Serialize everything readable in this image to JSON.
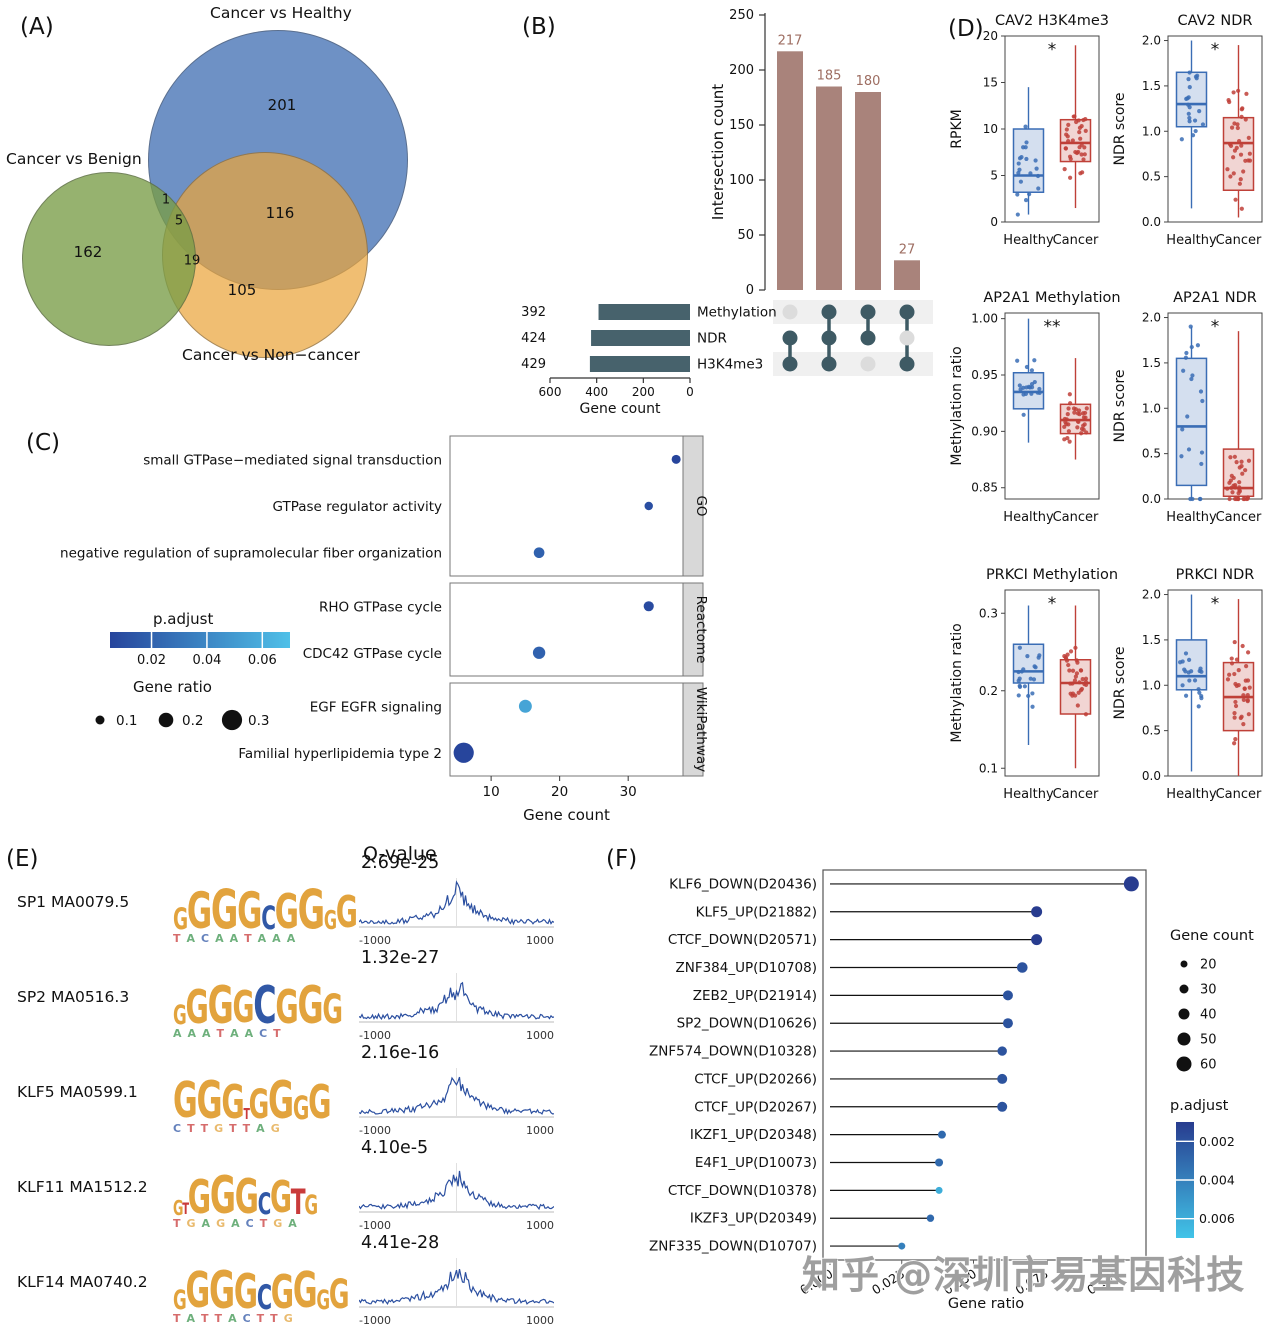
{
  "figure": {
    "panel_labels": {
      "A": "(A)",
      "B": "(B)",
      "C": "(C)",
      "D": "(D)",
      "E": "(E)",
      "F": "(F)"
    },
    "watermark": "知乎 @深圳市易基因科技"
  },
  "chart_data": [
    {
      "id": "venn",
      "type": "venn",
      "panel": "A",
      "sets": [
        {
          "label": "Cancer vs Healthy",
          "color": "#3e6cb2",
          "unique": 201
        },
        {
          "label": "Cancer vs Benign",
          "color": "#799c46",
          "unique": 162
        },
        {
          "label": "Cancer vs Non−cancer",
          "color": "#eaa53b",
          "unique": 105
        }
      ],
      "overlaps": {
        "healthy_benign": 1,
        "all_three": 5,
        "healthy_noncancer": 116,
        "benign_noncancer": 19
      }
    },
    {
      "id": "upset",
      "type": "upset",
      "panel": "B",
      "ylabel": "Intersection count",
      "ymax": 250,
      "yticks": [
        0,
        50,
        100,
        150,
        200,
        250
      ],
      "bar_color": "#a9837b",
      "bar_label_color": "#9e6e62",
      "dot_color": "#3e5a64",
      "dot_inactive": "#dcdcdc",
      "set_bar_color": "#47626c",
      "intersections": [
        {
          "count": 217,
          "sets": [
            "NDR",
            "H3K4me3"
          ]
        },
        {
          "count": 185,
          "sets": [
            "Methylation",
            "NDR",
            "H3K4me3"
          ]
        },
        {
          "count": 180,
          "sets": [
            "Methylation",
            "NDR"
          ]
        },
        {
          "count": 27,
          "sets": [
            "Methylation",
            "H3K4me3"
          ]
        }
      ],
      "set_sizes": [
        {
          "name": "Methylation",
          "count": 392
        },
        {
          "name": "NDR",
          "count": 424
        },
        {
          "name": "H3K4me3",
          "count": 429
        }
      ],
      "set_axis": {
        "label": "Gene count",
        "ticks": [
          600,
          400,
          200,
          0
        ]
      }
    },
    {
      "id": "enrichment_dotplot",
      "type": "dotplot",
      "panel": "C",
      "xlabel": "Gene count",
      "xticks": [
        10,
        20,
        30
      ],
      "xlim": [
        4,
        38
      ],
      "color_low": "#27459c",
      "color_high": "#4fc0e8",
      "groups": [
        {
          "name": "GO",
          "terms": [
            {
              "label": "small GTPase−mediated signal transduction",
              "gene_count": 37,
              "gene_ratio": 0.1,
              "p_adjust": 0.005
            },
            {
              "label": "GTPase regulator activity",
              "gene_count": 33,
              "gene_ratio": 0.09,
              "p_adjust": 0.01
            },
            {
              "label": "negative regulation of supramolecular fiber organization",
              "gene_count": 17,
              "gene_ratio": 0.13,
              "p_adjust": 0.02
            }
          ]
        },
        {
          "name": "Reactome",
          "terms": [
            {
              "label": "RHO GTPase cycle",
              "gene_count": 33,
              "gene_ratio": 0.12,
              "p_adjust": 0.008
            },
            {
              "label": "CDC42 GTPase cycle",
              "gene_count": 17,
              "gene_ratio": 0.16,
              "p_adjust": 0.02
            }
          ]
        },
        {
          "name": "WikiPathway",
          "terms": [
            {
              "label": "EGF EGFR signaling",
              "gene_count": 15,
              "gene_ratio": 0.17,
              "p_adjust": 0.055
            },
            {
              "label": "Familial hyperlipidemia type 2",
              "gene_count": 6,
              "gene_ratio": 0.3,
              "p_adjust": 0.004
            }
          ]
        }
      ],
      "legend": {
        "p_adjust_label": "p.adjust",
        "p_adjust_ticks": [
          0.02,
          0.04,
          0.06
        ],
        "gene_ratio_label": "Gene ratio",
        "gene_ratio_sizes": [
          0.1,
          0.2,
          0.3
        ]
      }
    },
    {
      "id": "boxplots",
      "type": "boxplot-grid",
      "panel": "D",
      "group_labels": [
        "Healthy",
        "Cancer"
      ],
      "group_colors": [
        "#3a6db5",
        "#bf4038"
      ],
      "group_fills": [
        "rgba(58,109,181,0.22)",
        "rgba(191,64,56,0.22)"
      ],
      "plots": [
        {
          "title": "CAV2 H3K4me3",
          "ylabel": "RPKM",
          "ylim": [
            0,
            20
          ],
          "tick_vals": [
            0,
            5,
            10,
            15,
            20
          ],
          "tick_labels": [
            "0",
            "5",
            "10",
            "15",
            "20"
          ],
          "sig": "*",
          "groups": [
            {
              "name": "Healthy",
              "whislo": 0.8,
              "q1": 3.2,
              "med": 5.0,
              "q3": 10.0,
              "whishi": 14.5,
              "n_points": 20
            },
            {
              "name": "Cancer",
              "whislo": 1.5,
              "q1": 6.5,
              "med": 8.5,
              "q3": 11.0,
              "whishi": 19.0,
              "n_points": 34
            }
          ]
        },
        {
          "title": "CAV2 NDR",
          "ylabel": "NDR score",
          "ylim": [
            0,
            2.05
          ],
          "tick_vals": [
            0,
            0.5,
            1.0,
            1.5,
            2.0
          ],
          "tick_labels": [
            "0.0",
            "0.5",
            "1.0",
            "1.5",
            "2.0"
          ],
          "sig": "*",
          "groups": [
            {
              "name": "Healthy",
              "whislo": 0.15,
              "q1": 1.05,
              "med": 1.3,
              "q3": 1.65,
              "whishi": 2.0,
              "n_points": 20
            },
            {
              "name": "Cancer",
              "whislo": 0.05,
              "q1": 0.35,
              "med": 0.87,
              "q3": 1.15,
              "whishi": 1.95,
              "n_points": 34
            }
          ]
        },
        {
          "title": "AP2A1 Methylation",
          "ylabel": "Methylation ratio",
          "ylim": [
            0.84,
            1.005
          ],
          "tick_vals": [
            0.85,
            0.9,
            0.95,
            1.0
          ],
          "tick_labels": [
            "0.85",
            "0.90",
            "0.95",
            "1.00"
          ],
          "sig": "**",
          "groups": [
            {
              "name": "Healthy",
              "whislo": 0.89,
              "q1": 0.92,
              "med": 0.935,
              "q3": 0.952,
              "whishi": 1.0,
              "n_points": 20
            },
            {
              "name": "Cancer",
              "whislo": 0.875,
              "q1": 0.898,
              "med": 0.91,
              "q3": 0.924,
              "whishi": 0.965,
              "n_points": 34
            }
          ]
        },
        {
          "title": "AP2A1 NDR",
          "ylabel": "NDR score",
          "ylim": [
            0,
            2.05
          ],
          "tick_vals": [
            0,
            0.5,
            1.0,
            1.5,
            2.0
          ],
          "tick_labels": [
            "0.0",
            "0.5",
            "1.0",
            "1.5",
            "2.0"
          ],
          "sig": "*",
          "groups": [
            {
              "name": "Healthy",
              "whislo": 0.0,
              "q1": 0.15,
              "med": 0.8,
              "q3": 1.55,
              "whishi": 1.9,
              "n_points": 20
            },
            {
              "name": "Cancer",
              "whislo": 0.0,
              "q1": 0.03,
              "med": 0.12,
              "q3": 0.55,
              "whishi": 1.85,
              "n_points": 34
            }
          ]
        },
        {
          "title": "PRKCI Methylation",
          "ylabel": "Methylation ratio",
          "ylim": [
            0.09,
            0.33
          ],
          "tick_vals": [
            0.1,
            0.2,
            0.3
          ],
          "tick_labels": [
            "0.1",
            "0.2",
            "0.3"
          ],
          "sig": "*",
          "groups": [
            {
              "name": "Healthy",
              "whislo": 0.13,
              "q1": 0.21,
              "med": 0.225,
              "q3": 0.26,
              "whishi": 0.31,
              "n_points": 20
            },
            {
              "name": "Cancer",
              "whislo": 0.1,
              "q1": 0.17,
              "med": 0.21,
              "q3": 0.24,
              "whishi": 0.31,
              "n_points": 34
            }
          ]
        },
        {
          "title": "PRKCI NDR",
          "ylabel": "NDR score",
          "ylim": [
            0,
            2.05
          ],
          "tick_vals": [
            0,
            0.5,
            1.0,
            1.5,
            2.0
          ],
          "tick_labels": [
            "0.0",
            "0.5",
            "1.0",
            "1.5",
            "2.0"
          ],
          "sig": "*",
          "groups": [
            {
              "name": "Healthy",
              "whislo": 0.05,
              "q1": 0.95,
              "med": 1.1,
              "q3": 1.5,
              "whishi": 2.0,
              "n_points": 20
            },
            {
              "name": "Cancer",
              "whislo": 0.0,
              "q1": 0.5,
              "med": 0.87,
              "q3": 1.25,
              "whishi": 1.95,
              "n_points": 34
            }
          ]
        }
      ]
    },
    {
      "id": "motifs",
      "type": "motif-list",
      "panel": "E",
      "qvalue_header": "Q-value",
      "profile_xticks": [
        "-1000",
        "1000"
      ],
      "letter_colors": {
        "G": "#E2A33D",
        "C": "#3158A6",
        "T": "#C93B3B",
        "A": "#3E9651"
      },
      "rows": [
        {
          "name": "SP1 MA0079.5",
          "qvalue": "2.69e-25",
          "sub": "TACAATAAA",
          "logo": [
            [
              "G",
              0.55
            ],
            [
              "G",
              0.92
            ],
            [
              "G",
              1.0
            ],
            [
              "G",
              0.92
            ],
            [
              "C",
              0.6
            ],
            [
              "G",
              0.88
            ],
            [
              "G",
              1.0
            ],
            [
              "G",
              0.48
            ],
            [
              "G",
              0.8
            ]
          ]
        },
        {
          "name": "SP2 MA0516.3",
          "qvalue": "1.32e-27",
          "sub": "AAATAACT",
          "logo": [
            [
              "G",
              0.5
            ],
            [
              "G",
              0.85
            ],
            [
              "G",
              0.95
            ],
            [
              "G",
              0.8
            ],
            [
              "C",
              0.95
            ],
            [
              "G",
              0.85
            ],
            [
              "G",
              0.95
            ],
            [
              "G",
              0.75
            ]
          ]
        },
        {
          "name": "KLF5 MA0599.1",
          "qvalue": "2.16e-16",
          "sub": "CTTGTTAG",
          "logo": [
            [
              "G",
              0.9
            ],
            [
              "G",
              0.95
            ],
            [
              "G",
              0.85
            ],
            [
              "T",
              0.28
            ],
            [
              "G",
              0.75
            ],
            [
              "G",
              0.95
            ],
            [
              "G",
              0.6
            ],
            [
              "G",
              0.85
            ]
          ]
        },
        {
          "name": "KLF11 MA1512.2",
          "qvalue": "4.10e-5",
          "sub": "TGAGACTGA",
          "logo": [
            [
              "G",
              0.38
            ],
            [
              "T",
              0.3
            ],
            [
              "G",
              0.85
            ],
            [
              "G",
              0.95
            ],
            [
              "G",
              0.88
            ],
            [
              "C",
              0.55
            ],
            [
              "G",
              0.8
            ],
            [
              "T",
              0.65
            ],
            [
              "G",
              0.5
            ]
          ]
        },
        {
          "name": "KLF14 MA0740.2",
          "qvalue": "4.41e-28",
          "sub": "TATTACTTG",
          "logo": [
            [
              "G",
              0.5
            ],
            [
              "G",
              0.9
            ],
            [
              "G",
              0.95
            ],
            [
              "G",
              0.88
            ],
            [
              "C",
              0.62
            ],
            [
              "G",
              0.85
            ],
            [
              "G",
              0.9
            ],
            [
              "G",
              0.5
            ],
            [
              "G",
              0.75
            ]
          ]
        }
      ]
    },
    {
      "id": "tf_lollipop",
      "type": "lollipop",
      "panel": "F",
      "xlabel": "Gene ratio",
      "color_low": "#283c8f",
      "color_high": "#41c4e8",
      "xticks": [
        {
          "v": 0,
          "label": "0.000"
        },
        {
          "v": 0.025,
          "label": "0.025"
        },
        {
          "v": 0.05,
          "label": "0.050"
        },
        {
          "v": 0.075,
          "label": "0.075"
        },
        {
          "v": 0.1,
          "label": "0.100"
        }
      ],
      "items": [
        {
          "label": "KLF6_DOWN(D20436)",
          "gene_ratio": 0.105,
          "gene_count": 60,
          "p_adjust": 0.001
        },
        {
          "label": "KLF5_UP(D21882)",
          "gene_ratio": 0.072,
          "gene_count": 40,
          "p_adjust": 0.001
        },
        {
          "label": "CTCF_DOWN(D20571)",
          "gene_ratio": 0.072,
          "gene_count": 40,
          "p_adjust": 0.001
        },
        {
          "label": "ZNF384_UP(D10708)",
          "gene_ratio": 0.067,
          "gene_count": 38,
          "p_adjust": 0.002
        },
        {
          "label": "ZEB2_UP(D21914)",
          "gene_ratio": 0.062,
          "gene_count": 35,
          "p_adjust": 0.002
        },
        {
          "label": "SP2_DOWN(D10626)",
          "gene_ratio": 0.062,
          "gene_count": 35,
          "p_adjust": 0.002
        },
        {
          "label": "ZNF574_DOWN(D10328)",
          "gene_ratio": 0.06,
          "gene_count": 32,
          "p_adjust": 0.002
        },
        {
          "label": "CTCF_UP(D20266)",
          "gene_ratio": 0.06,
          "gene_count": 35,
          "p_adjust": 0.002
        },
        {
          "label": "CTCF_UP(D20267)",
          "gene_ratio": 0.06,
          "gene_count": 35,
          "p_adjust": 0.002
        },
        {
          "label": "IKZF1_UP(D20348)",
          "gene_ratio": 0.039,
          "gene_count": 25,
          "p_adjust": 0.003
        },
        {
          "label": "E4F1_UP(D10073)",
          "gene_ratio": 0.038,
          "gene_count": 25,
          "p_adjust": 0.003
        },
        {
          "label": "CTCF_DOWN(D10378)",
          "gene_ratio": 0.038,
          "gene_count": 20,
          "p_adjust": 0.006
        },
        {
          "label": "IKZF3_UP(D20349)",
          "gene_ratio": 0.035,
          "gene_count": 22,
          "p_adjust": 0.003
        },
        {
          "label": "ZNF335_DOWN(D10707)",
          "gene_ratio": 0.025,
          "gene_count": 20,
          "p_adjust": 0.004
        }
      ],
      "legend": {
        "gene_count_label": "Gene count",
        "gene_count_sizes": [
          20,
          30,
          40,
          50,
          60
        ],
        "p_adjust_label": "p.adjust",
        "p_adjust_ticks": [
          0.002,
          0.004,
          0.006
        ]
      }
    }
  ]
}
